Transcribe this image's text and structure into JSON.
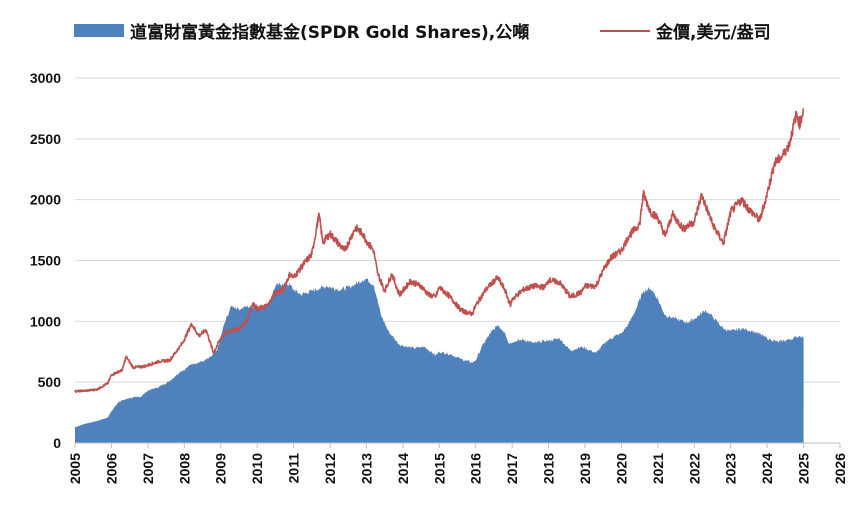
{
  "chart_data": {
    "type": "area",
    "title": "",
    "xlabel": "",
    "ylabel": "",
    "xlim": [
      2005,
      2026
    ],
    "ylim": [
      0,
      3000
    ],
    "grid": "horizontal",
    "legend_position": "top",
    "x_ticks": [
      "2005",
      "2006",
      "2007",
      "2008",
      "2009",
      "2010",
      "2011",
      "2012",
      "2013",
      "2014",
      "2015",
      "2016",
      "2017",
      "2018",
      "2019",
      "2020",
      "2021",
      "2022",
      "2023",
      "2024",
      "2025",
      "2026"
    ],
    "y_ticks": [
      "0",
      "500",
      "1000",
      "1500",
      "2000",
      "2500",
      "3000"
    ],
    "series": [
      {
        "name": "道富財富黃金指數基金(SPDR Gold Shares),公噸",
        "type": "area",
        "color": "#4f81bd",
        "points": [
          [
            2005.0,
            130
          ],
          [
            2005.3,
            160
          ],
          [
            2005.6,
            180
          ],
          [
            2005.9,
            210
          ],
          [
            2006.0,
            260
          ],
          [
            2006.2,
            340
          ],
          [
            2006.5,
            370
          ],
          [
            2006.8,
            380
          ],
          [
            2007.0,
            430
          ],
          [
            2007.3,
            460
          ],
          [
            2007.6,
            510
          ],
          [
            2007.9,
            590
          ],
          [
            2008.0,
            600
          ],
          [
            2008.2,
            650
          ],
          [
            2008.5,
            670
          ],
          [
            2008.7,
            700
          ],
          [
            2008.9,
            760
          ],
          [
            2009.1,
            980
          ],
          [
            2009.3,
            1130
          ],
          [
            2009.5,
            1100
          ],
          [
            2009.7,
            1120
          ],
          [
            2009.9,
            1120
          ],
          [
            2010.0,
            1110
          ],
          [
            2010.3,
            1140
          ],
          [
            2010.5,
            1290
          ],
          [
            2010.7,
            1310
          ],
          [
            2010.9,
            1300
          ],
          [
            2011.0,
            1260
          ],
          [
            2011.2,
            1220
          ],
          [
            2011.5,
            1250
          ],
          [
            2011.7,
            1270
          ],
          [
            2011.9,
            1290
          ],
          [
            2012.0,
            1280
          ],
          [
            2012.3,
            1260
          ],
          [
            2012.6,
            1290
          ],
          [
            2012.9,
            1340
          ],
          [
            2013.0,
            1350
          ],
          [
            2013.2,
            1300
          ],
          [
            2013.4,
            1050
          ],
          [
            2013.6,
            920
          ],
          [
            2013.9,
            810
          ],
          [
            2014.0,
            800
          ],
          [
            2014.3,
            780
          ],
          [
            2014.6,
            790
          ],
          [
            2014.9,
            720
          ],
          [
            2015.0,
            750
          ],
          [
            2015.3,
            730
          ],
          [
            2015.6,
            690
          ],
          [
            2015.9,
            660
          ],
          [
            2016.0,
            680
          ],
          [
            2016.2,
            810
          ],
          [
            2016.4,
            900
          ],
          [
            2016.6,
            970
          ],
          [
            2016.8,
            910
          ],
          [
            2016.9,
            820
          ],
          [
            2017.0,
            830
          ],
          [
            2017.3,
            850
          ],
          [
            2017.6,
            820
          ],
          [
            2017.9,
            840
          ],
          [
            2018.0,
            840
          ],
          [
            2018.3,
            860
          ],
          [
            2018.6,
            760
          ],
          [
            2018.9,
            790
          ],
          [
            2019.0,
            780
          ],
          [
            2019.3,
            740
          ],
          [
            2019.6,
            840
          ],
          [
            2019.9,
            890
          ],
          [
            2020.0,
            900
          ],
          [
            2020.2,
            980
          ],
          [
            2020.4,
            1100
          ],
          [
            2020.6,
            1250
          ],
          [
            2020.8,
            1270
          ],
          [
            2020.9,
            1230
          ],
          [
            2021.0,
            1180
          ],
          [
            2021.2,
            1050
          ],
          [
            2021.5,
            1020
          ],
          [
            2021.8,
            990
          ],
          [
            2022.0,
            1020
          ],
          [
            2022.3,
            1090
          ],
          [
            2022.5,
            1040
          ],
          [
            2022.8,
            940
          ],
          [
            2023.0,
            920
          ],
          [
            2023.3,
            940
          ],
          [
            2023.6,
            920
          ],
          [
            2023.9,
            880
          ],
          [
            2024.0,
            860
          ],
          [
            2024.3,
            830
          ],
          [
            2024.6,
            850
          ],
          [
            2024.8,
            870
          ],
          [
            2024.9,
            880
          ],
          [
            2025.0,
            870
          ]
        ]
      },
      {
        "name": "金價,美元/盎司",
        "type": "line",
        "color": "#c0504d",
        "points": [
          [
            2005.0,
            425
          ],
          [
            2005.3,
            430
          ],
          [
            2005.6,
            440
          ],
          [
            2005.9,
            490
          ],
          [
            2006.0,
            560
          ],
          [
            2006.3,
            600
          ],
          [
            2006.4,
            710
          ],
          [
            2006.6,
            620
          ],
          [
            2006.9,
            630
          ],
          [
            2007.0,
            640
          ],
          [
            2007.3,
            670
          ],
          [
            2007.6,
            680
          ],
          [
            2007.9,
            800
          ],
          [
            2008.0,
            850
          ],
          [
            2008.2,
            980
          ],
          [
            2008.4,
            880
          ],
          [
            2008.6,
            930
          ],
          [
            2008.8,
            740
          ],
          [
            2009.0,
            860
          ],
          [
            2009.2,
            920
          ],
          [
            2009.5,
            940
          ],
          [
            2009.7,
            1000
          ],
          [
            2009.9,
            1150
          ],
          [
            2010.0,
            1100
          ],
          [
            2010.3,
            1130
          ],
          [
            2010.5,
            1240
          ],
          [
            2010.7,
            1250
          ],
          [
            2010.9,
            1390
          ],
          [
            2011.0,
            1360
          ],
          [
            2011.3,
            1480
          ],
          [
            2011.5,
            1550
          ],
          [
            2011.7,
            1880
          ],
          [
            2011.8,
            1650
          ],
          [
            2012.0,
            1720
          ],
          [
            2012.2,
            1650
          ],
          [
            2012.4,
            1580
          ],
          [
            2012.7,
            1770
          ],
          [
            2012.9,
            1720
          ],
          [
            2013.0,
            1660
          ],
          [
            2013.2,
            1580
          ],
          [
            2013.3,
            1400
          ],
          [
            2013.5,
            1250
          ],
          [
            2013.7,
            1390
          ],
          [
            2013.9,
            1220
          ],
          [
            2014.0,
            1250
          ],
          [
            2014.2,
            1330
          ],
          [
            2014.5,
            1290
          ],
          [
            2014.7,
            1220
          ],
          [
            2014.9,
            1200
          ],
          [
            2015.0,
            1280
          ],
          [
            2015.3,
            1200
          ],
          [
            2015.6,
            1090
          ],
          [
            2015.9,
            1060
          ],
          [
            2016.0,
            1130
          ],
          [
            2016.3,
            1270
          ],
          [
            2016.6,
            1360
          ],
          [
            2016.8,
            1260
          ],
          [
            2016.95,
            1130
          ],
          [
            2017.0,
            1180
          ],
          [
            2017.3,
            1260
          ],
          [
            2017.6,
            1290
          ],
          [
            2017.9,
            1280
          ],
          [
            2018.0,
            1340
          ],
          [
            2018.3,
            1320
          ],
          [
            2018.6,
            1200
          ],
          [
            2018.9,
            1240
          ],
          [
            2019.0,
            1290
          ],
          [
            2019.3,
            1290
          ],
          [
            2019.5,
            1420
          ],
          [
            2019.7,
            1520
          ],
          [
            2020.0,
            1580
          ],
          [
            2020.2,
            1700
          ],
          [
            2020.5,
            1800
          ],
          [
            2020.6,
            2050
          ],
          [
            2020.8,
            1900
          ],
          [
            2021.0,
            1850
          ],
          [
            2021.2,
            1700
          ],
          [
            2021.4,
            1880
          ],
          [
            2021.7,
            1760
          ],
          [
            2021.9,
            1800
          ],
          [
            2022.0,
            1820
          ],
          [
            2022.2,
            2040
          ],
          [
            2022.5,
            1800
          ],
          [
            2022.8,
            1640
          ],
          [
            2023.0,
            1900
          ],
          [
            2023.3,
            2000
          ],
          [
            2023.5,
            1920
          ],
          [
            2023.8,
            1830
          ],
          [
            2024.0,
            2050
          ],
          [
            2024.2,
            2300
          ],
          [
            2024.4,
            2350
          ],
          [
            2024.6,
            2450
          ],
          [
            2024.8,
            2700
          ],
          [
            2024.9,
            2620
          ],
          [
            2025.0,
            2750
          ]
        ]
      }
    ]
  },
  "legend": {
    "area_label": "道富財富黃金指數基金(SPDR Gold Shares),公噸",
    "line_label": "金價,美元/盎司"
  }
}
